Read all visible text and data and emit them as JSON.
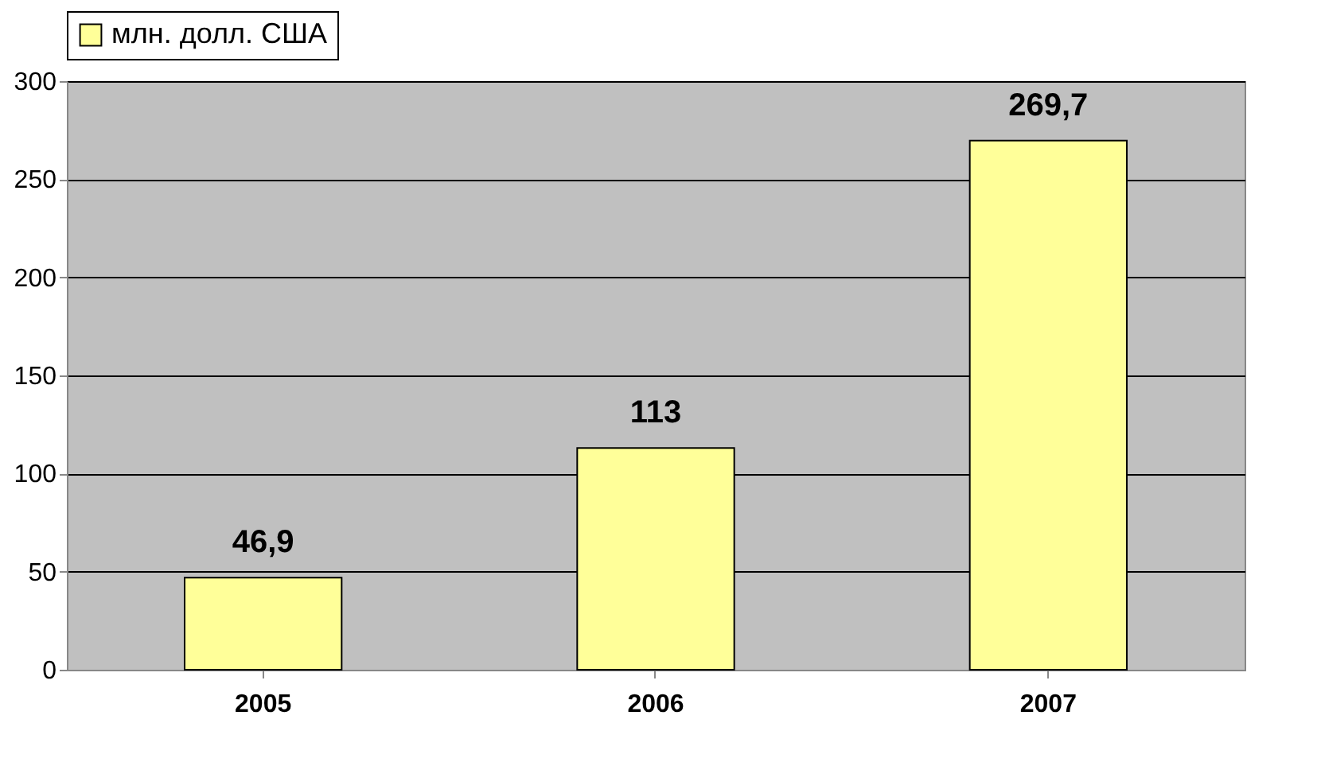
{
  "chart_data": {
    "type": "bar",
    "categories": [
      "2005",
      "2006",
      "2007"
    ],
    "series": [
      {
        "name": "млн. долл. США",
        "color": "#ffff99",
        "values": [
          46.9,
          113,
          269.7
        ],
        "value_labels": [
          "46,9",
          "113",
          "269,7"
        ]
      }
    ],
    "ylim": [
      0,
      300
    ],
    "yticks": [
      0,
      50,
      100,
      150,
      200,
      250,
      300
    ],
    "grid": "y",
    "legend": "top left"
  }
}
